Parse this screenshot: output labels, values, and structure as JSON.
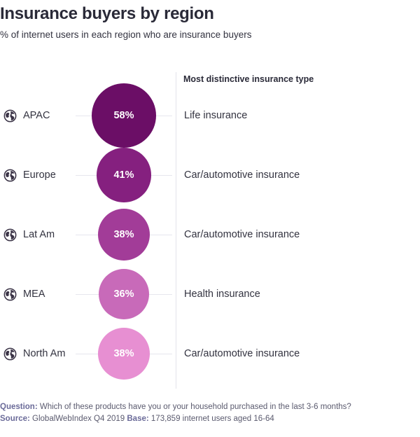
{
  "title": "Insurance buyers by region",
  "subtitle": "% of internet users in each region who are insurance buyers",
  "column_header": "Most distinctive insurance type",
  "colors": [
    "#6b0e66",
    "#85207f",
    "#a23c98",
    "#c86ab9",
    "#e78fd2"
  ],
  "chart_data": {
    "type": "bubble",
    "title": "Insurance buyers by region",
    "subtitle": "% of internet users in each region who are insurance buyers",
    "unit": "%",
    "categories": [
      "APAC",
      "Europe",
      "Lat Am",
      "MEA",
      "North Am"
    ],
    "values": [
      58,
      41,
      38,
      36,
      38
    ],
    "value_labels": [
      "58%",
      "41%",
      "38%",
      "36%",
      "38%"
    ],
    "most_distinctive_insurance_type": [
      "Life insurance",
      "Car/automotive insurance",
      "Car/automotive insurance",
      "Health insurance",
      "Car/automotive insurance"
    ]
  },
  "footer": {
    "question_label": "Question:",
    "question_text": "Which of these products have you or your household purchased in the last 3-6 months?",
    "source_label": "Source:",
    "source_text": "GlobalWebIndex Q4 2019",
    "base_label": "Base:",
    "base_text": "173,859 internet users aged 16-64"
  }
}
